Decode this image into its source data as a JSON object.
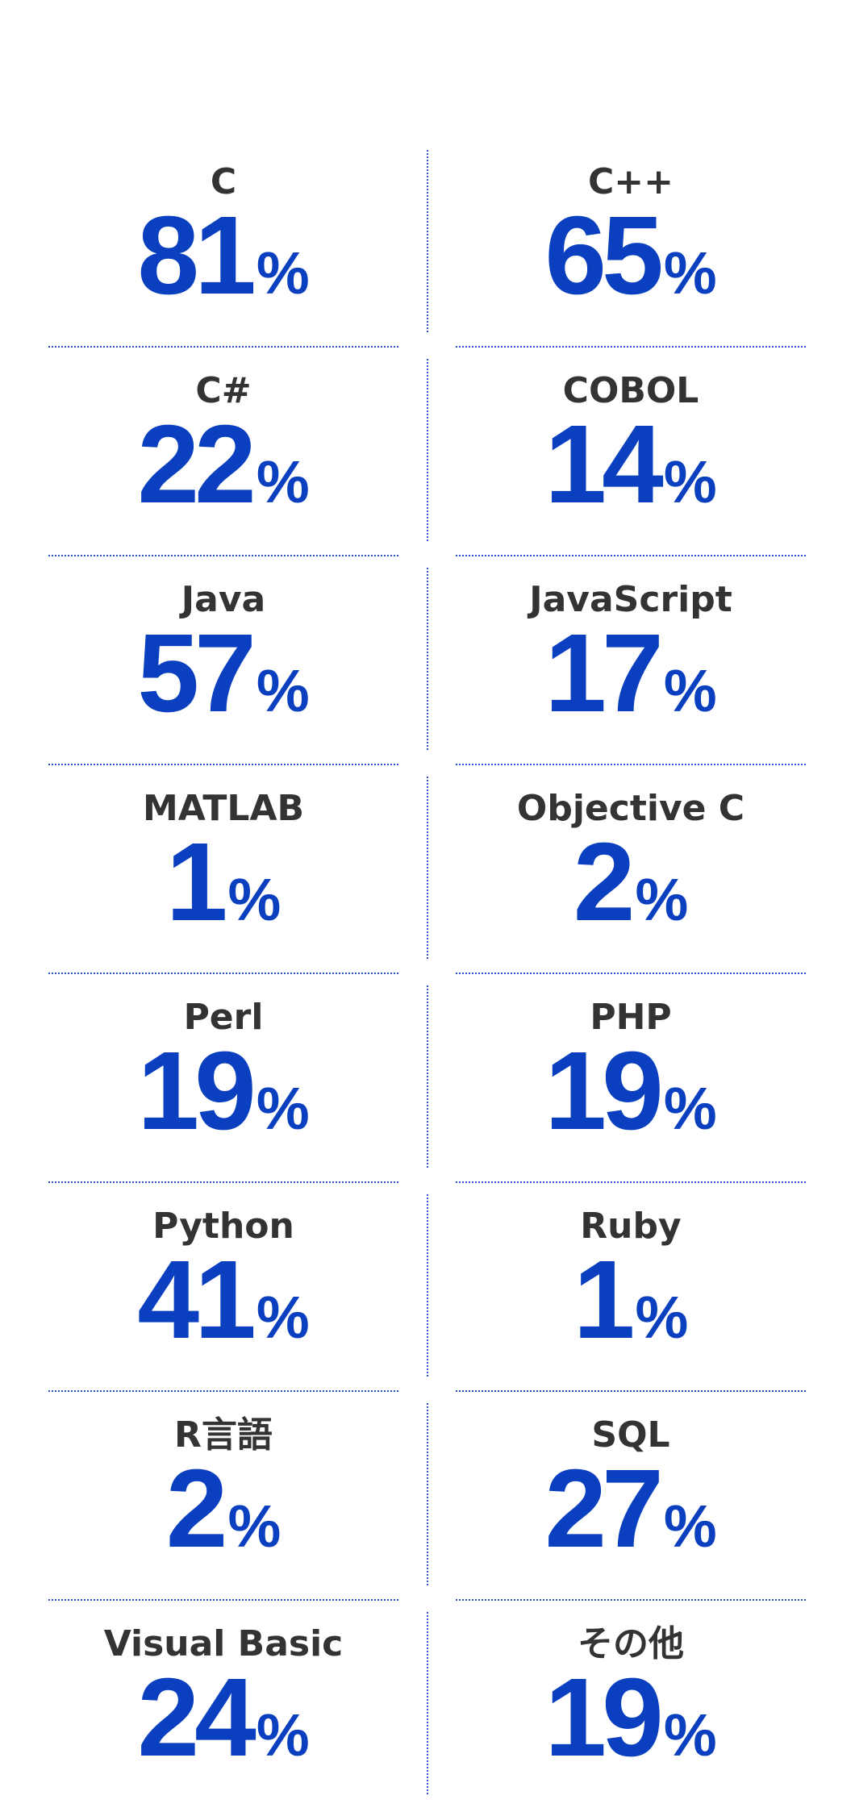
{
  "colors": {
    "accent": "#0a3fbf",
    "label": "#333333",
    "divider": "#2a4fc9",
    "background": "#ffffff"
  },
  "chart_data": {
    "type": "table",
    "unit": "%",
    "categories": [
      "C",
      "C++",
      "C#",
      "COBOL",
      "Java",
      "JavaScript",
      "MATLAB",
      "Objective C",
      "Perl",
      "PHP",
      "Python",
      "Ruby",
      "R言語",
      "SQL",
      "Visual Basic",
      "その他"
    ],
    "values": [
      81,
      65,
      22,
      14,
      57,
      17,
      1,
      2,
      19,
      19,
      41,
      1,
      2,
      27,
      24,
      19
    ],
    "items": [
      {
        "label": "C",
        "value": "81",
        "unit": "%"
      },
      {
        "label": "C++",
        "value": "65",
        "unit": "%"
      },
      {
        "label": "C#",
        "value": "22",
        "unit": "%"
      },
      {
        "label": "COBOL",
        "value": "14",
        "unit": "%"
      },
      {
        "label": "Java",
        "value": "57",
        "unit": "%"
      },
      {
        "label": "JavaScript",
        "value": "17",
        "unit": "%"
      },
      {
        "label": "MATLAB",
        "value": "1",
        "unit": "%"
      },
      {
        "label": "Objective C",
        "value": "2",
        "unit": "%"
      },
      {
        "label": "Perl",
        "value": "19",
        "unit": "%"
      },
      {
        "label": "PHP",
        "value": "19",
        "unit": "%"
      },
      {
        "label": "Python",
        "value": "41",
        "unit": "%"
      },
      {
        "label": "Ruby",
        "value": "1",
        "unit": "%"
      },
      {
        "label": "R言語",
        "value": "2",
        "unit": "%"
      },
      {
        "label": "SQL",
        "value": "27",
        "unit": "%"
      },
      {
        "label": "Visual Basic",
        "value": "24",
        "unit": "%"
      },
      {
        "label": "その他",
        "value": "19",
        "unit": "%"
      }
    ]
  }
}
